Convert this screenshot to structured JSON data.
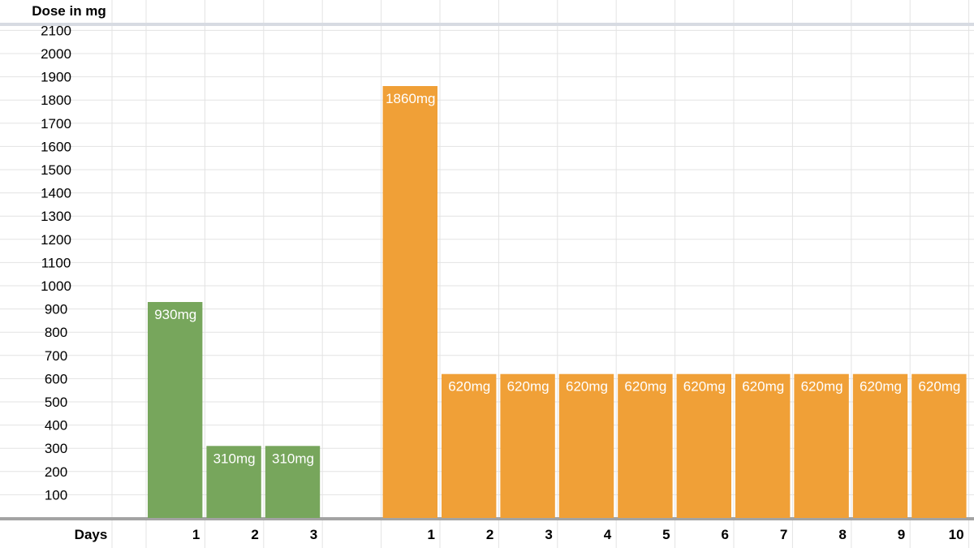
{
  "chart_data": {
    "type": "bar",
    "ylabel": "Dose in mg",
    "xlabel": "Days",
    "yticks": [
      100,
      200,
      300,
      400,
      500,
      600,
      700,
      800,
      900,
      1000,
      1100,
      1200,
      1300,
      1400,
      1500,
      1600,
      1700,
      1800,
      1900,
      2000,
      2100
    ],
    "ylim": [
      0,
      2200
    ],
    "grid": true,
    "legend": "none",
    "series": [
      {
        "color": "#77a65c",
        "categories": [
          "1",
          "2",
          "3"
        ],
        "values": [
          930,
          310,
          310
        ],
        "data_labels": [
          "930mg",
          "310mg",
          "310mg"
        ]
      },
      {
        "color": "#f0a037",
        "categories": [
          "1",
          "2",
          "3",
          "4",
          "5",
          "6",
          "7",
          "8",
          "9",
          "10"
        ],
        "values": [
          1860,
          620,
          620,
          620,
          620,
          620,
          620,
          620,
          620,
          620
        ],
        "data_labels": [
          "1860mg",
          "620mg",
          "620mg",
          "620mg",
          "620mg",
          "620mg",
          "620mg",
          "620mg",
          "620mg",
          "620mg"
        ]
      }
    ]
  }
}
